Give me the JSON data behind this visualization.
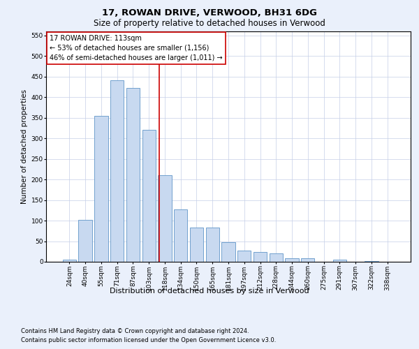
{
  "title1": "17, ROWAN DRIVE, VERWOOD, BH31 6DG",
  "title2": "Size of property relative to detached houses in Verwood",
  "xlabel": "Distribution of detached houses by size in Verwood",
  "ylabel": "Number of detached properties",
  "categories": [
    "24sqm",
    "40sqm",
    "55sqm",
    "71sqm",
    "87sqm",
    "103sqm",
    "118sqm",
    "134sqm",
    "150sqm",
    "165sqm",
    "181sqm",
    "197sqm",
    "212sqm",
    "228sqm",
    "244sqm",
    "260sqm",
    "275sqm",
    "291sqm",
    "307sqm",
    "322sqm",
    "338sqm"
  ],
  "values": [
    5,
    102,
    354,
    442,
    422,
    320,
    210,
    128,
    84,
    84,
    48,
    28,
    24,
    20,
    8,
    8,
    0,
    5,
    0,
    2,
    0
  ],
  "bar_color": "#c8d9f0",
  "bar_edge_color": "#6096c8",
  "vline_color": "#cc0000",
  "box_color": "#cc0000",
  "annotation_title": "17 ROWAN DRIVE: 113sqm",
  "annotation_line1": "← 53% of detached houses are smaller (1,156)",
  "annotation_line2": "46% of semi-detached houses are larger (1,011) →",
  "ylim": [
    0,
    560
  ],
  "yticks": [
    0,
    50,
    100,
    150,
    200,
    250,
    300,
    350,
    400,
    450,
    500,
    550
  ],
  "footnote1": "Contains HM Land Registry data © Crown copyright and database right 2024.",
  "footnote2": "Contains public sector information licensed under the Open Government Licence v3.0.",
  "background_color": "#eaf0fb",
  "plot_bg_color": "#ffffff",
  "title_fontsize": 9.5,
  "subtitle_fontsize": 8.5,
  "ylabel_fontsize": 7.5,
  "xlabel_fontsize": 8,
  "tick_fontsize": 6.5,
  "annot_fontsize": 7,
  "footnote_fontsize": 6
}
